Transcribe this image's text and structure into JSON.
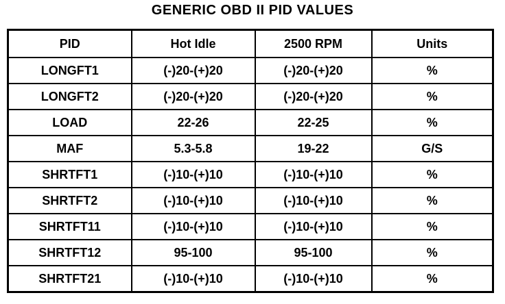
{
  "header": {
    "title": "GENERIC OBD II PID VALUES"
  },
  "table": {
    "columns": [
      "PID",
      "Hot Idle",
      "2500 RPM",
      "Units"
    ],
    "rows": [
      [
        "LONGFT1",
        "(-)20-(+)20",
        "(-)20-(+)20",
        "%"
      ],
      [
        "LONGFT2",
        "(-)20-(+)20",
        "(-)20-(+)20",
        "%"
      ],
      [
        "LOAD",
        "22-26",
        "22-25",
        "%"
      ],
      [
        "MAF",
        "5.3-5.8",
        "19-22",
        "G/S"
      ],
      [
        "SHRTFT1",
        "(-)10-(+)10",
        "(-)10-(+)10",
        "%"
      ],
      [
        "SHRTFT2",
        "(-)10-(+)10",
        "(-)10-(+)10",
        "%"
      ],
      [
        "SHRTFT11",
        "(-)10-(+)10",
        "(-)10-(+)10",
        "%"
      ],
      [
        "SHRTFT12",
        "95-100",
        "95-100",
        "%"
      ],
      [
        "SHRTFT21",
        "(-)10-(+)10",
        "(-)10-(+)10",
        "%"
      ]
    ]
  }
}
